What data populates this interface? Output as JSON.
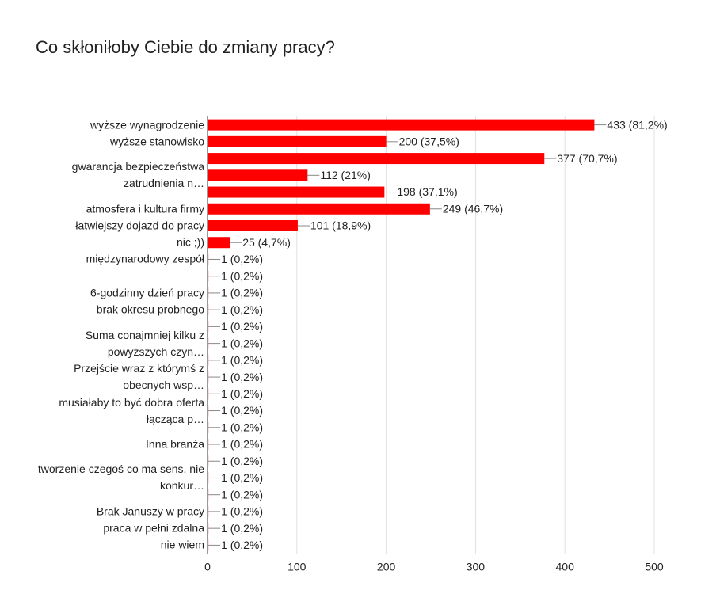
{
  "chart_data": {
    "type": "hbar",
    "title": "Co skłoniłoby Ciebie do zmiany pracy?",
    "categories": [
      "wyższe wynagrodzenie",
      "wyższe stanowisko",
      null,
      "gwarancja bezpieczeństwa zatrudnienia n…",
      null,
      "atmosfera i kultura firmy",
      "łatwiejszy dojazd do pracy",
      "nic ;))",
      "międzynarodowy zespół",
      null,
      "6-godzinny dzień pracy",
      "brak okresu probnego",
      null,
      "Suma conajmniej kilku z powyższych czyn…",
      null,
      "Przejście wraz z którymś z obecnych wsp…",
      null,
      "musiałaby to być dobra oferta łącząca p…",
      null,
      "Inna branża",
      null,
      "tworzenie czegoś co ma sens, nie konkur…",
      null,
      "Brak Januszy w pracy",
      "praca w pełni zdalna",
      "nie wiem"
    ],
    "values": [
      433,
      200,
      377,
      112,
      198,
      249,
      101,
      25,
      1,
      1,
      1,
      1,
      1,
      1,
      1,
      1,
      1,
      1,
      1,
      1,
      1,
      1,
      1,
      1,
      1,
      1
    ],
    "value_labels": [
      "433 (81,2%)",
      "200 (37,5%)",
      "377 (70,7%)",
      "112 (21%)",
      "198 (37,1%)",
      "249 (46,7%)",
      "101 (18,9%)",
      "25 (4,7%)",
      "1 (0,2%)",
      "1 (0,2%)",
      "1 (0,2%)",
      "1 (0,2%)",
      "1 (0,2%)",
      "1 (0,2%)",
      "1 (0,2%)",
      "1 (0,2%)",
      "1 (0,2%)",
      "1 (0,2%)",
      "1 (0,2%)",
      "1 (0,2%)",
      "1 (0,2%)",
      "1 (0,2%)",
      "1 (0,2%)",
      "1 (0,2%)",
      "1 (0,2%)",
      "1 (0,2%)"
    ],
    "color": "#ff0000",
    "xlim": [
      0,
      500
    ],
    "xticks": [
      0,
      100,
      200,
      300,
      400,
      500
    ],
    "grid": true
  }
}
